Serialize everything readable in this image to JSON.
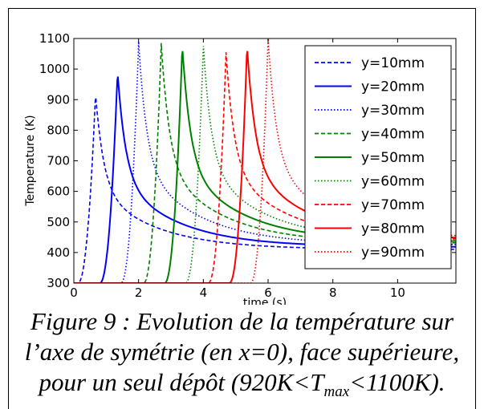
{
  "chart_data": {
    "type": "line",
    "title": "",
    "xlabel": "time (s)",
    "ylabel": "Temperature (K)",
    "xlim": [
      0,
      11.8
    ],
    "ylim": [
      300,
      1100
    ],
    "x_ticks": [
      "0",
      "2",
      "4",
      "6",
      "8",
      "10"
    ],
    "y_ticks": [
      "300",
      "400",
      "500",
      "600",
      "700",
      "800",
      "900",
      "1000",
      "1100"
    ],
    "legend_position": "upper right",
    "series": [
      {
        "name": "y=10mm",
        "color": "#0000ff",
        "style": "dashed",
        "peak_time": 0.67,
        "peak_temp": 920,
        "final_temp": 410
      },
      {
        "name": "y=20mm",
        "color": "#0000ff",
        "style": "solid",
        "peak_time": 1.35,
        "peak_temp": 990,
        "final_temp": 418
      },
      {
        "name": "y=30mm",
        "color": "#0000ff",
        "style": "dashdot",
        "peak_time": 2.0,
        "peak_temp": 1090,
        "final_temp": 425
      },
      {
        "name": "y=40mm",
        "color": "#008000",
        "style": "dashed",
        "peak_time": 2.7,
        "peak_temp": 1085,
        "final_temp": 430
      },
      {
        "name": "y=50mm",
        "color": "#008000",
        "style": "solid",
        "peak_time": 3.35,
        "peak_temp": 1075,
        "final_temp": 435
      },
      {
        "name": "y=60mm",
        "color": "#008000",
        "style": "dashdot",
        "peak_time": 4.0,
        "peak_temp": 1075,
        "final_temp": 438
      },
      {
        "name": "y=70mm",
        "color": "#ff0000",
        "style": "dashed",
        "peak_time": 4.7,
        "peak_temp": 1055,
        "final_temp": 440
      },
      {
        "name": "y=80mm",
        "color": "#ff0000",
        "style": "solid",
        "peak_time": 5.35,
        "peak_temp": 1075,
        "final_temp": 442
      },
      {
        "name": "y=90mm",
        "color": "#ff0000",
        "style": "dashdot",
        "peak_time": 6.0,
        "peak_temp": 1100,
        "final_temp": 445
      }
    ]
  },
  "caption": {
    "line1": "Figure 9 : Evolution de la température sur",
    "line2": "l’axe de symétrie (en x=0), face supérieure,",
    "line3_pre": "pour un seul dépôt (920K<T",
    "line3_sub": "max",
    "line3_post": "<1100K)."
  }
}
